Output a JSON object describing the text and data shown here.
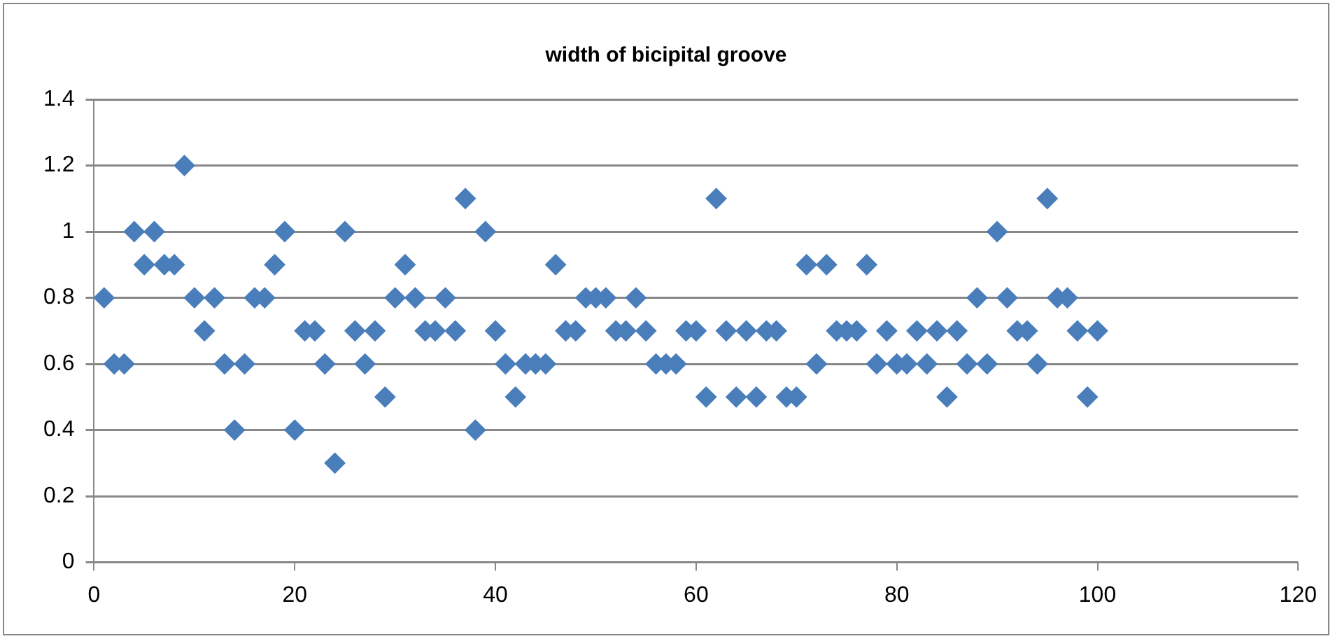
{
  "chart_data": {
    "type": "scatter",
    "title": "width of bicipital groove",
    "x": [
      1,
      2,
      3,
      4,
      5,
      6,
      7,
      8,
      9,
      10,
      11,
      12,
      13,
      14,
      15,
      16,
      17,
      18,
      19,
      20,
      21,
      22,
      23,
      24,
      25,
      26,
      27,
      28,
      29,
      30,
      31,
      32,
      33,
      34,
      35,
      36,
      37,
      38,
      39,
      40,
      41,
      42,
      43,
      44,
      45,
      46,
      47,
      48,
      49,
      50,
      51,
      52,
      53,
      54,
      55,
      56,
      57,
      58,
      59,
      60,
      61,
      62,
      63,
      64,
      65,
      66,
      67,
      68,
      69,
      70,
      71,
      72,
      73,
      74,
      75,
      76,
      77,
      78,
      79,
      80,
      81,
      82,
      83,
      84,
      85,
      86,
      87,
      88,
      89,
      90,
      91,
      92,
      93,
      94,
      95,
      96,
      97,
      98,
      99,
      100
    ],
    "series": [
      {
        "color": "#4a7ebb",
        "values": [
          0.8,
          0.6,
          0.6,
          1.0,
          0.9,
          1.0,
          0.9,
          0.9,
          1.2,
          0.8,
          0.7,
          0.8,
          0.6,
          0.4,
          0.6,
          0.8,
          0.8,
          0.9,
          1.0,
          0.4,
          0.7,
          0.7,
          0.6,
          0.3,
          1.0,
          0.7,
          0.6,
          0.7,
          0.5,
          0.8,
          0.9,
          0.8,
          0.7,
          0.7,
          0.8,
          0.7,
          1.1,
          0.4,
          1.0,
          0.7,
          0.6,
          0.5,
          0.6,
          0.6,
          0.6,
          0.9,
          0.7,
          0.7,
          0.8,
          0.8,
          0.8,
          0.7,
          0.7,
          0.8,
          0.7,
          0.6,
          0.6,
          0.6,
          0.7,
          0.7,
          0.5,
          1.1,
          0.7,
          0.5,
          0.7,
          0.5,
          0.7,
          0.7,
          0.5,
          0.5,
          0.9,
          0.6,
          0.9,
          0.7,
          0.7,
          0.7,
          0.9,
          0.6,
          0.7,
          0.6,
          0.6,
          0.7,
          0.6,
          0.7,
          0.5,
          0.7,
          0.6,
          0.8,
          0.6,
          1.0,
          0.8,
          0.7,
          0.7,
          0.6,
          1.1,
          0.8,
          0.8,
          0.7,
          0.5,
          0.7
        ]
      }
    ],
    "xlim": [
      0,
      120
    ],
    "xticks": [
      0,
      20,
      40,
      60,
      80,
      100,
      120
    ],
    "ylim": [
      0,
      1.4
    ],
    "yticks": [
      0,
      0.2,
      0.4,
      0.6,
      0.8,
      1,
      1.2,
      1.4
    ],
    "grid": "y",
    "legend": false,
    "marker": "diamond"
  }
}
